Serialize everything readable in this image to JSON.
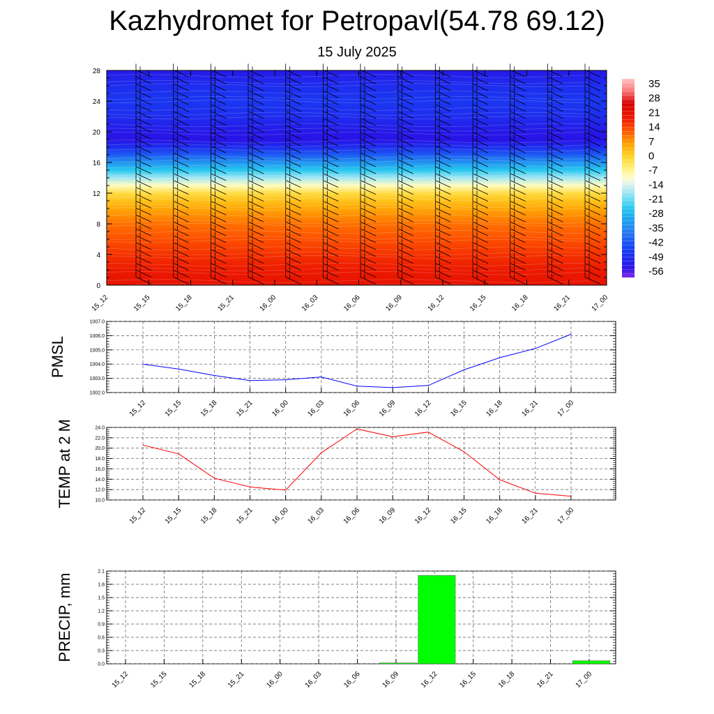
{
  "title": "Kazhydromet for Petropavl(54.78 69.12)",
  "subtitle": "15 July 2025",
  "colors": {
    "pmsl": "#0000ff",
    "temp": "#ff0000",
    "precip": "#00ff00"
  },
  "chart_data": [
    {
      "type": "heatmap",
      "name_key": "cross_section",
      "x": [
        "15_12",
        "15_15",
        "15_18",
        "15_21",
        "16_00",
        "16_03",
        "16_06",
        "16_09",
        "16_12",
        "16_15",
        "16_18",
        "16_21",
        "17_00"
      ],
      "yticks": [
        0,
        4,
        8,
        12,
        16,
        20,
        24,
        28
      ],
      "ylim": [
        0,
        28
      ],
      "colorbar_labels": [
        "35",
        "28",
        "21",
        "14",
        "7",
        "0",
        "-7",
        "-14",
        "-21",
        "-28",
        "-35",
        "-42",
        "-49",
        "-56"
      ],
      "colorbar_range": [
        -60,
        38
      ],
      "temperature_profile": [
        [
          0,
          21
        ],
        [
          2,
          19
        ],
        [
          4,
          16
        ],
        [
          6,
          13
        ],
        [
          8,
          10
        ],
        [
          10,
          5
        ],
        [
          11,
          2
        ],
        [
          12,
          -2
        ],
        [
          13,
          -10
        ],
        [
          14,
          -18
        ],
        [
          15,
          -26
        ],
        [
          16,
          -34
        ],
        [
          17,
          -42
        ],
        [
          18,
          -50
        ],
        [
          19,
          -55
        ],
        [
          20,
          -54
        ],
        [
          22,
          -50
        ],
        [
          24,
          -48
        ],
        [
          26,
          -50
        ],
        [
          28,
          -54
        ]
      ],
      "wind_barbs": true
    },
    {
      "type": "line",
      "ylabel": "PMSL",
      "x": [
        "15_12",
        "15_15",
        "15_18",
        "15_21",
        "16_00",
        "16_03",
        "16_06",
        "16_09",
        "16_12",
        "16_15",
        "16_18",
        "16_21",
        "17_00"
      ],
      "values": [
        1004.0,
        1003.65,
        1003.2,
        1002.85,
        1002.9,
        1003.1,
        1002.45,
        1002.35,
        1002.5,
        1003.6,
        1004.45,
        1005.1,
        1006.1
      ],
      "ylim": [
        1002.0,
        1007.0
      ],
      "yticks": [
        "1002.0",
        "1003.0",
        "1004.0",
        "1005.0",
        "1006.0",
        "1007.0"
      ],
      "grid": true
    },
    {
      "type": "line",
      "ylabel": "TEMP at 2 M",
      "x": [
        "15_12",
        "15_15",
        "15_18",
        "15_21",
        "16_00",
        "16_03",
        "16_06",
        "16_09",
        "16_12",
        "16_15",
        "16_18",
        "16_21",
        "17_00"
      ],
      "values": [
        20.6,
        18.9,
        14.2,
        12.5,
        11.9,
        19.1,
        23.7,
        22.2,
        23.1,
        19.3,
        13.9,
        11.3,
        10.7
      ],
      "ylim": [
        10.0,
        24.0
      ],
      "yticks": [
        "10.0",
        "12.0",
        "14.0",
        "16.0",
        "18.0",
        "20.0",
        "22.0",
        "24.0"
      ],
      "grid": true
    },
    {
      "type": "bar",
      "ylabel": "PRECIP, mm",
      "x": [
        "15_12",
        "15_15",
        "15_18",
        "15_21",
        "16_00",
        "16_03",
        "16_06",
        "16_09",
        "16_12",
        "16_15",
        "16_18",
        "16_21",
        "17_00"
      ],
      "values": [
        0,
        0,
        0,
        0,
        0,
        0,
        0,
        0.02,
        2.0,
        0,
        0,
        0,
        0.07
      ],
      "ylim": [
        0,
        2.1
      ],
      "yticks": [
        "0.0",
        "0.3",
        "0.6",
        "0.9",
        "1.2",
        "1.5",
        "1.8",
        "2.1"
      ],
      "grid": true
    }
  ]
}
